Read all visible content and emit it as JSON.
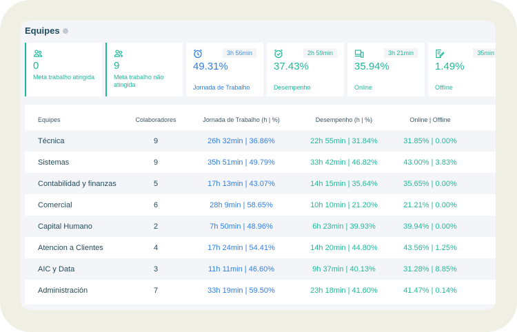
{
  "title": "Equipes",
  "colors": {
    "teal": "#1fb89a",
    "blue": "#2f7fe6",
    "title": "#1f4d5e"
  },
  "cards": [
    {
      "icon": "users-icon",
      "value": "0",
      "label": "Meta trabalho atingida"
    },
    {
      "icon": "users-icon",
      "value": "9",
      "label": "Meta trabalho não atingida"
    },
    {
      "icon": "alarm-clock-icon",
      "badge": "3h 56min",
      "value": "49.31%",
      "label": "Jornada de Trabalho"
    },
    {
      "icon": "alarm-check-icon",
      "badge": "2h 59min",
      "value": "37.43%",
      "label": "Desempenho"
    },
    {
      "icon": "devices-icon",
      "badge": "3h 21min",
      "value": "35.94%",
      "label": "Online"
    },
    {
      "icon": "edit-document-icon",
      "badge": "35min",
      "value": "1.49%",
      "label": "Offline"
    }
  ],
  "table": {
    "headers": [
      "Equipes",
      "Colaboradores",
      "Jornada de Trabalho (h | %)",
      "Desempenho (h | %)",
      "Online | Offline"
    ],
    "rows": [
      [
        "Técnica",
        "9",
        "26h 32min | 36.86%",
        "22h 55min | 31.84%",
        "31.85% | 0.00%"
      ],
      [
        "Sistemas",
        "9",
        "35h 51min | 49.79%",
        "33h 42min | 46.82%",
        "43.00% | 3.83%"
      ],
      [
        "Contabilidad y finanzas",
        "5",
        "17h 13min | 43.07%",
        "14h 15min | 35.64%",
        "35.65% | 0.00%"
      ],
      [
        "Comercial",
        "6",
        "28h 9min | 58.65%",
        "10h 10min | 21.20%",
        "21.21% | 0.00%"
      ],
      [
        "Capital Humano",
        "2",
        "7h 50min | 48.96%",
        "6h 23min | 39.93%",
        "39.94% | 0.00%"
      ],
      [
        "Atencion a Clientes",
        "4",
        "17h 24min | 54.41%",
        "14h 20min | 44.80%",
        "43.56% | 1.25%"
      ],
      [
        "AIC y Data",
        "3",
        "11h 11min | 46.60%",
        "9h 37min | 40.13%",
        "31.28% | 8.85%"
      ],
      [
        "Administración",
        "7",
        "33h 19min | 59.50%",
        "23h 18min | 41.60%",
        "41.47% | 0.14%"
      ]
    ]
  }
}
